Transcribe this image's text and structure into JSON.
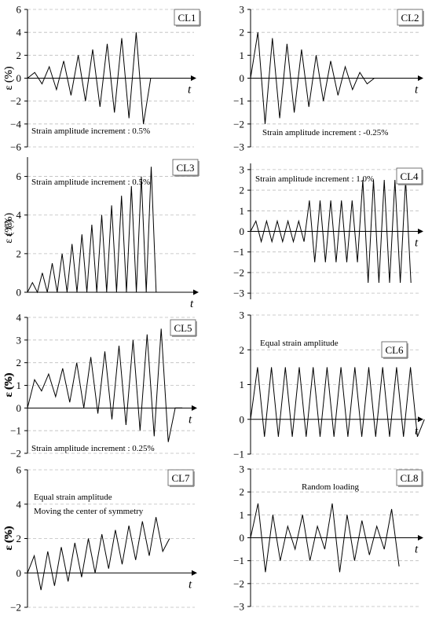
{
  "chart_data": [
    {
      "id": "CL1",
      "type": "line",
      "tag": "CL1",
      "ylabel": "ε (%)",
      "xlabel": "t",
      "ylim": [
        -6,
        6
      ],
      "yticks": [
        -6,
        -4,
        -2,
        0,
        2,
        4,
        6
      ],
      "xlim": [
        0,
        22
      ],
      "annotation": "Strain amplitude increment : 0.5%",
      "series": [
        {
          "x": [
            0,
            1,
            2,
            3,
            4,
            5,
            6,
            7,
            8,
            9,
            10,
            11,
            12,
            13,
            14,
            15,
            16,
            17,
            18,
            19,
            20
          ],
          "y": [
            0,
            0.5,
            -0.5,
            1.0,
            -1.0,
            1.5,
            -1.5,
            2.0,
            -2.0,
            2.5,
            -2.5,
            3.0,
            -3.0,
            3.5,
            -3.5,
            4.0,
            -4.0,
            0,
            0,
            0,
            0
          ]
        }
      ]
    },
    {
      "id": "CL2",
      "type": "line",
      "tag": "CL2",
      "ylabel": "ε (%)",
      "xlabel": "t",
      "ylim": [
        -3,
        3
      ],
      "yticks": [
        -3,
        -2,
        -1,
        0,
        1,
        2,
        3
      ],
      "xlim": [
        0,
        22
      ],
      "annotation": "Strain amplitude increment : -0.25%",
      "series": [
        {
          "x": [
            0,
            1,
            2,
            3,
            4,
            5,
            6,
            7,
            8,
            9,
            10,
            11,
            12,
            13,
            14,
            15,
            16,
            17
          ],
          "y": [
            0,
            2.0,
            -2.0,
            1.75,
            -1.75,
            1.5,
            -1.5,
            1.25,
            -1.25,
            1.0,
            -1.0,
            0.75,
            -0.75,
            0.5,
            -0.5,
            0.25,
            -0.25,
            0
          ]
        }
      ]
    },
    {
      "id": "CL3",
      "type": "line",
      "tag": "CL3",
      "ylabel": "ε (%)",
      "xlabel": "t",
      "ylim": [
        0,
        7
      ],
      "yticks": [
        0,
        2,
        4,
        6
      ],
      "xlim": [
        0,
        30
      ],
      "annotation": "Strain amplitude increment : 0.5%",
      "series": [
        {
          "x": [
            0,
            1,
            2,
            3,
            4,
            5,
            6,
            7,
            8,
            9,
            10,
            11,
            12,
            13,
            14,
            15,
            16,
            17,
            18,
            19,
            20,
            21,
            22,
            23,
            24,
            25,
            26,
            27
          ],
          "y": [
            0,
            0.5,
            0,
            1.0,
            0,
            1.5,
            0,
            2.0,
            0,
            2.5,
            0,
            3.0,
            0,
            3.5,
            0,
            4.0,
            0,
            4.5,
            0,
            5.0,
            0,
            5.5,
            0,
            6.0,
            0,
            6.5,
            0,
            0
          ]
        }
      ]
    },
    {
      "id": "CL4",
      "type": "line",
      "tag": "CL4",
      "ylabel": "ε (%)",
      "xlabel": "t",
      "ylim": [
        -3.3,
        3.3
      ],
      "yticks": [
        -3,
        -2,
        -1,
        0,
        1,
        2,
        3
      ],
      "xlim": [
        0,
        31
      ],
      "annotation": "Strain amplitude increment : 1.0%",
      "series": [
        {
          "x": [
            0,
            1,
            2,
            3,
            4,
            5,
            6,
            7,
            8,
            9,
            10,
            11,
            12,
            13,
            14,
            15,
            16,
            17,
            18,
            19,
            20,
            21,
            22,
            23,
            24,
            25,
            26,
            27,
            28,
            29,
            30
          ],
          "y": [
            0,
            0.5,
            -0.5,
            0.5,
            -0.5,
            0.5,
            -0.5,
            0.5,
            -0.5,
            0.5,
            -0.5,
            1.5,
            -1.5,
            1.5,
            -1.5,
            1.5,
            -1.5,
            1.5,
            -1.5,
            1.5,
            -1.5,
            2.5,
            -2.5,
            2.5,
            -2.5,
            2.5,
            -2.5,
            2.5,
            -2.5,
            2.5,
            -2.5
          ]
        }
      ]
    },
    {
      "id": "CL5",
      "type": "line",
      "tag": "CL5",
      "ylabel": "ε (%)",
      "xlabel": "t",
      "ylim": [
        -2,
        4
      ],
      "yticks": [
        -2,
        -1,
        0,
        1,
        2,
        3,
        4
      ],
      "xlim": [
        0,
        24
      ],
      "annotation": "Strain amplitude increment : 0.25%",
      "series": [
        {
          "x": [
            0,
            1,
            2,
            3,
            4,
            5,
            6,
            7,
            8,
            9,
            10,
            11,
            12,
            13,
            14,
            15,
            16,
            17,
            18,
            19,
            20,
            21,
            22
          ],
          "y": [
            0,
            1.25,
            0.75,
            1.5,
            0.5,
            1.75,
            0.25,
            2.0,
            0,
            2.25,
            -0.25,
            2.5,
            -0.5,
            2.75,
            -0.75,
            3.0,
            -1.0,
            3.25,
            -1.25,
            3.5,
            -1.5,
            0,
            0
          ]
        }
      ]
    },
    {
      "id": "CL6",
      "type": "line",
      "tag": "CL6",
      "ylabel": "ε (%)",
      "xlabel": "t",
      "ylim": [
        -1,
        3
      ],
      "yticks": [
        -1,
        0,
        1,
        2,
        3
      ],
      "xlim": [
        0,
        27
      ],
      "annotation": "Equal strain amplitude",
      "series": [
        {
          "x": [
            0,
            1,
            2,
            3,
            4,
            5,
            6,
            7,
            8,
            9,
            10,
            11,
            12,
            13,
            14,
            15,
            16,
            17,
            18,
            19,
            20,
            21,
            22,
            23,
            24,
            25
          ],
          "y": [
            0,
            1.5,
            -0.5,
            1.5,
            -0.5,
            1.5,
            -0.5,
            1.5,
            -0.5,
            1.5,
            -0.5,
            1.5,
            -0.5,
            1.5,
            -0.5,
            1.5,
            -0.5,
            1.5,
            -0.5,
            1.5,
            -0.5,
            1.5,
            -0.5,
            1.5,
            -0.5,
            0
          ]
        }
      ]
    },
    {
      "id": "CL7",
      "type": "line",
      "tag": "CL7",
      "ylabel": "ε (%)",
      "xlabel": "t",
      "ylim": [
        -2,
        6
      ],
      "yticks": [
        -2,
        0,
        2,
        4,
        6
      ],
      "xlim": [
        0,
        23
      ],
      "annotation": "Equal strain amplitude",
      "annotation2": "Moving the center of symmetry",
      "series": [
        {
          "x": [
            0,
            1,
            2,
            3,
            4,
            5,
            6,
            7,
            8,
            9,
            10,
            11,
            12,
            13,
            14,
            15,
            16,
            17,
            18,
            19,
            20,
            21
          ],
          "y": [
            0,
            1.0,
            -1.0,
            1.25,
            -0.75,
            1.5,
            -0.5,
            1.75,
            -0.25,
            2.0,
            0,
            2.25,
            0.25,
            2.5,
            0.5,
            2.75,
            0.75,
            3.0,
            1.0,
            3.25,
            1.25,
            2.0
          ]
        }
      ]
    },
    {
      "id": "CL8",
      "type": "line",
      "tag": "CL8",
      "ylabel": "ε (%)",
      "xlabel": "t",
      "ylim": [
        -3,
        3
      ],
      "yticks": [
        -3,
        -2,
        -1,
        0,
        1,
        2,
        3
      ],
      "xlim": [
        0,
        22
      ],
      "annotation": "Random loading",
      "series": [
        {
          "x": [
            0,
            1,
            2,
            3,
            4,
            5,
            6,
            7,
            8,
            9,
            10,
            11,
            12,
            13,
            14,
            15,
            16,
            17,
            18,
            19,
            20
          ],
          "y": [
            0,
            1.5,
            -1.5,
            1.0,
            -1.0,
            0.5,
            -0.5,
            1.0,
            -1.0,
            0.5,
            -0.5,
            1.5,
            -1.5,
            1.0,
            -1.0,
            0.75,
            -0.75,
            0.5,
            -0.5,
            1.25,
            -1.25
          ]
        }
      ]
    }
  ]
}
